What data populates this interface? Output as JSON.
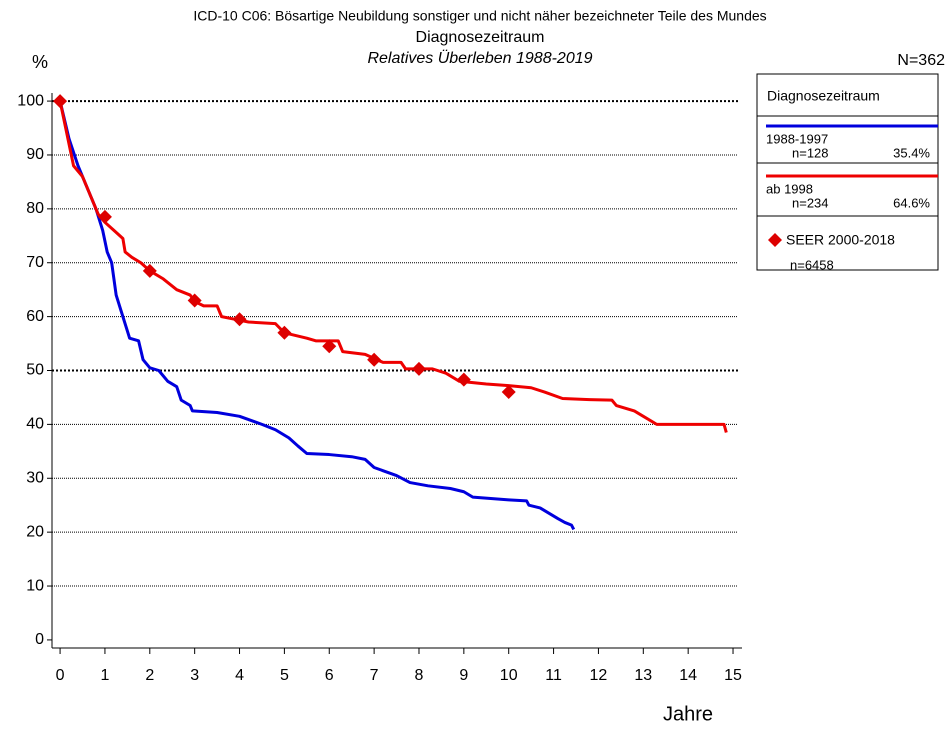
{
  "chart_data": {
    "type": "line",
    "title": "ICD-10 C06: Bösartige Neubildung sonstiger und nicht näher bezeichneter Teile des Mundes",
    "subtitle": "Diagnosezeitraum",
    "subtitle2": "Relatives Überleben 1988-2019",
    "y_label": "%",
    "x_label": "Jahre",
    "total_label": "N=362",
    "legend_title": "Diagnosezeitraum",
    "grid": true,
    "xlim": [
      -0.18,
      15.2
    ],
    "ylim": [
      -1.5,
      101.5
    ],
    "xticks": [
      0,
      1,
      2,
      3,
      4,
      5,
      6,
      7,
      8,
      9,
      10,
      11,
      12,
      13,
      14,
      15
    ],
    "yticks": [
      0,
      10,
      20,
      30,
      40,
      50,
      60,
      70,
      80,
      90,
      100
    ],
    "series": [
      {
        "name": "1988-1997",
        "n_label": "n=128",
        "share_label": "35.4%",
        "color": "#0000dd",
        "x": [
          0,
          0.2,
          0.4,
          0.6,
          0.8,
          0.95,
          1.05,
          1.15,
          1.25,
          1.4,
          1.55,
          1.75,
          1.85,
          2.0,
          2.2,
          2.4,
          2.6,
          2.7,
          2.9,
          2.95,
          3.5,
          4.0,
          4.5,
          4.8,
          5.1,
          5.3,
          5.5,
          6.0,
          6.5,
          6.8,
          7.0,
          7.5,
          7.8,
          8.2,
          8.7,
          9.0,
          9.2,
          10.0,
          10.4,
          10.45,
          10.7,
          10.9,
          11.1,
          11.25,
          11.4,
          11.45
        ],
        "values": [
          100,
          93,
          88,
          84,
          80,
          76,
          72,
          70,
          64,
          60,
          56,
          55.5,
          52,
          50.5,
          50,
          48,
          47,
          44.5,
          43.5,
          42.5,
          42.2,
          41.5,
          40,
          39,
          37.5,
          36,
          34.6,
          34.4,
          34,
          33.5,
          32,
          30.5,
          29.2,
          28.6,
          28.1,
          27.5,
          26.5,
          26,
          25.8,
          25,
          24.5,
          23.5,
          22.5,
          21.8,
          21.3,
          20.5
        ]
      },
      {
        "name": "ab 1998",
        "n_label": "n=234",
        "share_label": "64.6%",
        "color": "#ee0000",
        "x": [
          0,
          0.1,
          0.2,
          0.3,
          0.5,
          0.7,
          0.85,
          1.0,
          1.2,
          1.4,
          1.45,
          1.6,
          1.8,
          2.0,
          2.3,
          2.6,
          2.9,
          3.0,
          3.2,
          3.5,
          3.6,
          3.9,
          4.2,
          4.8,
          5.0,
          5.5,
          5.7,
          6.2,
          6.3,
          6.8,
          7.2,
          7.6,
          7.7,
          8.3,
          8.6,
          8.9,
          9.5,
          10.0,
          10.5,
          10.8,
          11.2,
          11.8,
          12.3,
          12.4,
          12.8,
          13.0,
          13.3,
          14.0,
          14.8,
          14.85
        ],
        "values": [
          100,
          96,
          92,
          88,
          86,
          82,
          79,
          77.5,
          76,
          74.5,
          72,
          71,
          70,
          68.5,
          67,
          65,
          64,
          62.8,
          62,
          62,
          60,
          59.5,
          59,
          58.7,
          57,
          56,
          55.5,
          55.5,
          53.5,
          53,
          51.5,
          51.5,
          50.3,
          50.3,
          49.5,
          48,
          47.5,
          47.2,
          46.8,
          46,
          44.8,
          44.6,
          44.5,
          43.5,
          42.5,
          41.5,
          40,
          40,
          40,
          38.5
        ]
      },
      {
        "name": "SEER 2000-2018",
        "n_label": "n=6458",
        "color": "#dd0000",
        "marker": "diamond",
        "x": [
          0,
          1,
          2,
          3,
          4,
          5,
          6,
          7,
          8,
          9,
          10
        ],
        "values": [
          100,
          78.5,
          68.5,
          63,
          59.5,
          57,
          54.5,
          52,
          50.3,
          48.3,
          46
        ]
      }
    ]
  }
}
